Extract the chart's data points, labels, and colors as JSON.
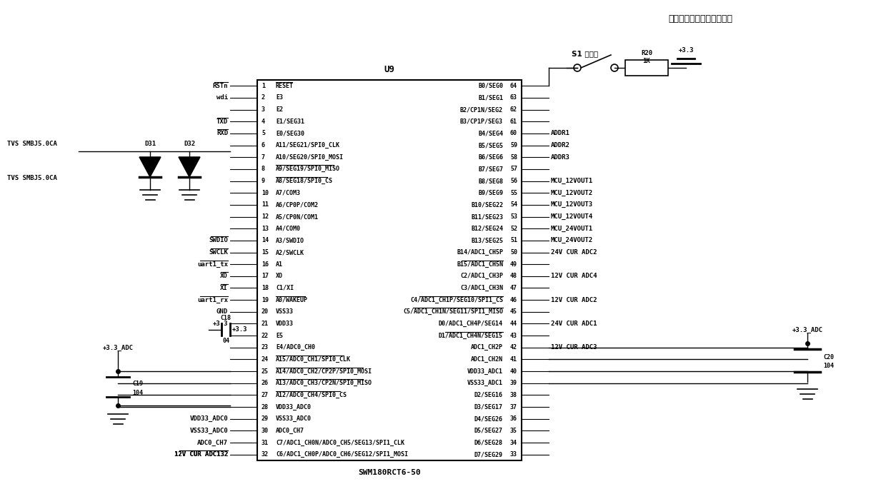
{
  "chip_label": "U9",
  "chip_bottom_label": "SWM180RCT6-50",
  "bg_color": "#ffffff",
  "line_color": "#000000",
  "text_color": "#000000",
  "title_cn": "按下按鈕上电进入升级状态",
  "s1_label": "S1 升级键",
  "r20_label": "R20",
  "r20_val": "1K",
  "vcc33": "+3.3",
  "vcc33_adc": "+3.3_ADC",
  "left_pins": [
    {
      "num": "1",
      "ext": "RSTn",
      "sig": "RESET",
      "ext_ol": true,
      "sig_ol": true
    },
    {
      "num": "2",
      "ext": "wdi",
      "sig": "E3",
      "ext_ol": false,
      "sig_ol": false
    },
    {
      "num": "3",
      "ext": "",
      "sig": "E2",
      "ext_ol": false,
      "sig_ol": false
    },
    {
      "num": "4",
      "ext": "TXD",
      "sig": "E1/SEG31",
      "ext_ol": true,
      "sig_ol": false
    },
    {
      "num": "5",
      "ext": "RXD",
      "sig": "E0/SEG30",
      "ext_ol": true,
      "sig_ol": false
    },
    {
      "num": "6",
      "ext": "",
      "sig": "A11/SEG21/SPI0_CLK",
      "ext_ol": false,
      "sig_ol": false
    },
    {
      "num": "7",
      "ext": "",
      "sig": "A10/SEG20/SPI0_MOSI",
      "ext_ol": false,
      "sig_ol": false
    },
    {
      "num": "8",
      "ext": "",
      "sig": "A9/SEG19/SPI0_MISO",
      "ext_ol": false,
      "sig_ol": true
    },
    {
      "num": "9",
      "ext": "",
      "sig": "A8/SEG18/SPI0_CS",
      "ext_ol": false,
      "sig_ol": true
    },
    {
      "num": "10",
      "ext": "",
      "sig": "A7/COM3",
      "ext_ol": false,
      "sig_ol": false
    },
    {
      "num": "11",
      "ext": "",
      "sig": "A6/CP0P/COM2",
      "ext_ol": false,
      "sig_ol": false
    },
    {
      "num": "12",
      "ext": "",
      "sig": "A5/CP0N/COM1",
      "ext_ol": false,
      "sig_ol": false
    },
    {
      "num": "13",
      "ext": "",
      "sig": "A4/COM0",
      "ext_ol": false,
      "sig_ol": false
    },
    {
      "num": "14",
      "ext": "SWDIO",
      "sig": "A3/SWDIO",
      "ext_ol": true,
      "sig_ol": false
    },
    {
      "num": "15",
      "ext": "SWCLK",
      "sig": "A2/SWCLK",
      "ext_ol": true,
      "sig_ol": false
    },
    {
      "num": "16",
      "ext": "uart1_tx",
      "sig": "A1",
      "ext_ol": true,
      "sig_ol": false
    },
    {
      "num": "17",
      "ext": "XO",
      "sig": "XO",
      "ext_ol": true,
      "sig_ol": false
    },
    {
      "num": "18",
      "ext": "XI",
      "sig": "C1/XI",
      "ext_ol": true,
      "sig_ol": false
    },
    {
      "num": "19",
      "ext": "uart1_rx",
      "sig": "A0/WAKEUP",
      "ext_ol": true,
      "sig_ol": true
    },
    {
      "num": "20",
      "ext": "GND",
      "sig": "VSS33",
      "ext_ol": false,
      "sig_ol": false
    },
    {
      "num": "21",
      "ext": "+3.3",
      "sig": "VDD33",
      "ext_ol": false,
      "sig_ol": false
    },
    {
      "num": "22",
      "ext": "",
      "sig": "E5",
      "ext_ol": false,
      "sig_ol": false
    },
    {
      "num": "23",
      "ext": "",
      "sig": "E4/ADC0_CH0",
      "ext_ol": false,
      "sig_ol": false
    },
    {
      "num": "24",
      "ext": "",
      "sig": "A15/ADC0_CH1/SPI0_CLK",
      "ext_ol": false,
      "sig_ol": true
    },
    {
      "num": "25",
      "ext": "",
      "sig": "A14/ADC0_CH2/CP2P/SPI0_MOSI",
      "ext_ol": false,
      "sig_ol": true
    },
    {
      "num": "26",
      "ext": "",
      "sig": "A13/ADC0_CH3/CP2N/SPI0_MISO",
      "ext_ol": false,
      "sig_ol": true
    },
    {
      "num": "27",
      "ext": "",
      "sig": "A12/ADC0_CH4/SPI0_CS",
      "ext_ol": false,
      "sig_ol": true
    },
    {
      "num": "28",
      "ext": "",
      "sig": "VDD33_ADC0",
      "ext_ol": false,
      "sig_ol": false
    },
    {
      "num": "29",
      "ext": "VDD33_ADC0",
      "sig": "VSS33_ADC0",
      "ext_ol": false,
      "sig_ol": false
    },
    {
      "num": "30",
      "ext": "VSS33_ADC0",
      "sig": "ADC0_CH7",
      "ext_ol": false,
      "sig_ol": false
    },
    {
      "num": "31",
      "ext": "ADC0_CH7",
      "sig": "C7/ADC1_CH0N/ADC0_CH5/SEG13/SPI1_CLK",
      "ext_ol": false,
      "sig_ol": false
    },
    {
      "num": "32",
      "ext": "12V CUR ADC132",
      "sig": "C6/ADC1_CH0P/ADC0_CH6/SEG12/SPI1_MOSI",
      "ext_ol": true,
      "sig_ol": false
    }
  ],
  "right_pins": [
    {
      "num": "64",
      "sig": "B0/SEG0",
      "ext": "",
      "sig_ol": false
    },
    {
      "num": "63",
      "sig": "B1/SEG1",
      "ext": "",
      "sig_ol": false
    },
    {
      "num": "62",
      "sig": "B2/CP1N/SEG2",
      "ext": "",
      "sig_ol": false
    },
    {
      "num": "61",
      "sig": "B3/CP1P/SEG3",
      "ext": "",
      "sig_ol": false
    },
    {
      "num": "60",
      "sig": "B4/SEG4",
      "ext": "ADDR1",
      "sig_ol": false
    },
    {
      "num": "59",
      "sig": "B5/SEG5",
      "ext": "ADDR2",
      "sig_ol": false
    },
    {
      "num": "58",
      "sig": "B6/SEG6",
      "ext": "ADDR3",
      "sig_ol": false
    },
    {
      "num": "57",
      "sig": "B7/SEG7",
      "ext": "",
      "sig_ol": false
    },
    {
      "num": "56",
      "sig": "B8/SEG8",
      "ext": "MCU_12VOUT1",
      "sig_ol": false
    },
    {
      "num": "55",
      "sig": "B9/SEG9",
      "ext": "MCU_12VOUT2",
      "sig_ol": false
    },
    {
      "num": "54",
      "sig": "B10/SEG22",
      "ext": "MCU_12VOUT3",
      "sig_ol": false
    },
    {
      "num": "53",
      "sig": "B11/SEG23",
      "ext": "MCU_12VOUT4",
      "sig_ol": false
    },
    {
      "num": "52",
      "sig": "B12/SEG24",
      "ext": "MCU_24VOUT1",
      "sig_ol": false
    },
    {
      "num": "51",
      "sig": "B13/SEG25",
      "ext": "MCU_24VOUT2",
      "sig_ol": false
    },
    {
      "num": "50",
      "sig": "B14/ADC1_CH5P",
      "ext": "24V CUR ADC2",
      "sig_ol": false
    },
    {
      "num": "49",
      "sig": "B15/ADC1_CH5N",
      "ext": "",
      "sig_ol": true
    },
    {
      "num": "48",
      "sig": "C2/ADC1_CH3P",
      "ext": "12V CUR ADC4",
      "sig_ol": false
    },
    {
      "num": "47",
      "sig": "C3/ADC1_CH3N",
      "ext": "",
      "sig_ol": false
    },
    {
      "num": "46",
      "sig": "C4/ADC1_CH1P/SEG10/SPI1_CS",
      "ext": "12V CUR ADC2",
      "sig_ol": true
    },
    {
      "num": "45",
      "sig": "C5/ADC1_CH1N/SEG11/SPI1_MISO",
      "ext": "",
      "sig_ol": true
    },
    {
      "num": "44",
      "sig": "D0/ADC1_CH4P/SEG14",
      "ext": "24V CUR ADC1",
      "sig_ol": false
    },
    {
      "num": "43",
      "sig": "D1/ADC1_CH4N/SEG15",
      "ext": "",
      "sig_ol": true
    },
    {
      "num": "42",
      "sig": "ADC1_CH2P",
      "ext": "12V CUR ADC3",
      "sig_ol": false
    },
    {
      "num": "41",
      "sig": "ADC1_CH2N",
      "ext": "",
      "sig_ol": false
    },
    {
      "num": "40",
      "sig": "VDD33_ADC1",
      "ext": "",
      "sig_ol": false
    },
    {
      "num": "39",
      "sig": "VSS33_ADC1",
      "ext": "",
      "sig_ol": false
    },
    {
      "num": "38",
      "sig": "D2/SEG16",
      "ext": "",
      "sig_ol": false
    },
    {
      "num": "37",
      "sig": "D3/SEG17",
      "ext": "",
      "sig_ol": false
    },
    {
      "num": "36",
      "sig": "D4/SEG26",
      "ext": "",
      "sig_ol": false
    },
    {
      "num": "35",
      "sig": "D5/SEG27",
      "ext": "",
      "sig_ol": false
    },
    {
      "num": "34",
      "sig": "D6/SEG28",
      "ext": "",
      "sig_ol": false
    },
    {
      "num": "33",
      "sig": "D7/SEG29",
      "ext": "",
      "sig_ol": false
    }
  ]
}
